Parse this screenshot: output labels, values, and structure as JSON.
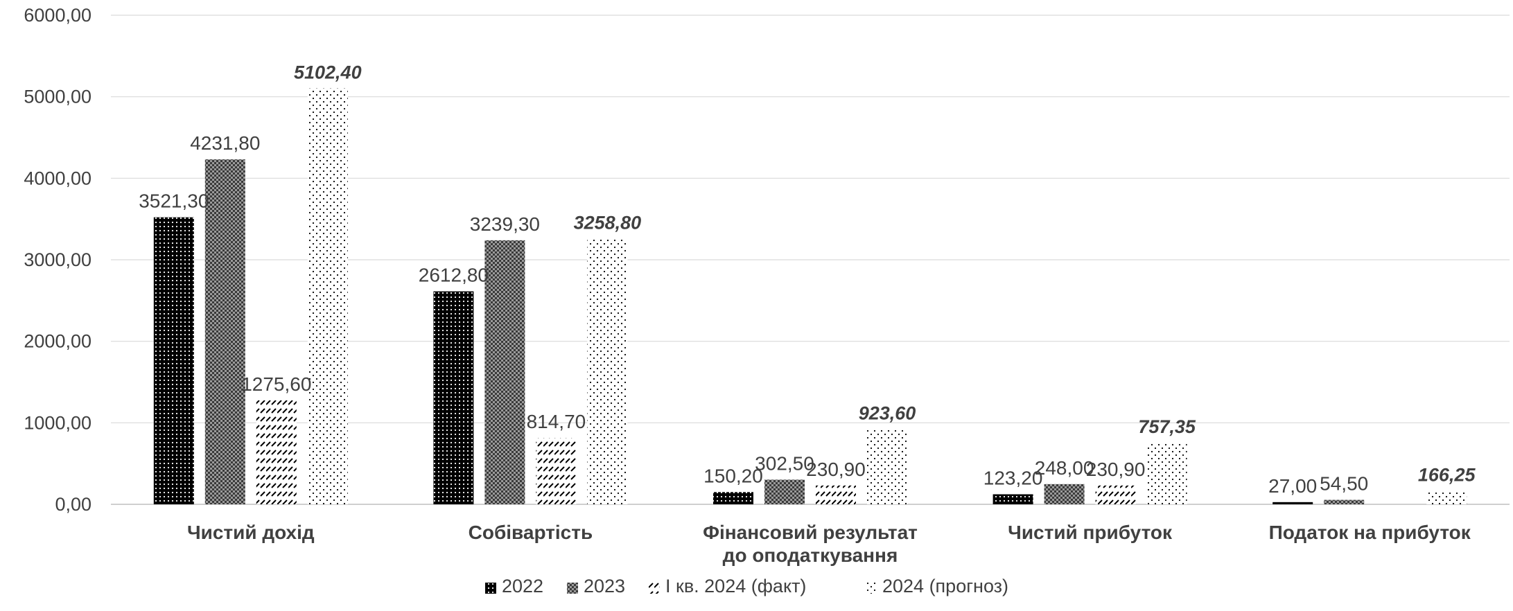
{
  "chart_data": {
    "type": "bar",
    "categories": [
      [
        "Чистий дохід"
      ],
      [
        "Собівартість"
      ],
      [
        "Фінансовий результат",
        "до оподаткування"
      ],
      [
        "Чистий прибуток"
      ],
      [
        "Податок на прибуток"
      ]
    ],
    "series": [
      {
        "name": "2022",
        "pattern": "solid-dots",
        "values": [
          3521.3,
          2612.8,
          150.2,
          123.2,
          27.0
        ],
        "labels": [
          "3521,30",
          "2612,80",
          "150,20",
          "123,20",
          "27,00"
        ]
      },
      {
        "name": "2023",
        "pattern": "checker",
        "values": [
          4231.8,
          3239.3,
          302.5,
          248.0,
          54.5
        ],
        "labels": [
          "4231,80",
          "3239,30",
          "302,50",
          "248,00",
          "54,50"
        ]
      },
      {
        "name": "I кв. 2024 (факт)",
        "pattern": "diagonal-dashes",
        "values": [
          1275.6,
          814.7,
          230.9,
          230.9,
          0
        ],
        "labels": [
          "1275,60",
          "814,70",
          "230,90",
          "230,90",
          ""
        ]
      },
      {
        "name": "2024 (прогноз)",
        "pattern": "sparse-dots",
        "values": [
          5102.4,
          3258.8,
          923.6,
          757.35,
          166.25
        ],
        "labels": [
          "5102,40",
          "3258,80",
          "923,60",
          "757,35",
          "166,25"
        ],
        "label_style": "bold-italic"
      }
    ],
    "y_ticks": [
      "0,00",
      "1000,00",
      "2000,00",
      "3000,00",
      "4000,00",
      "5000,00",
      "6000,00"
    ],
    "ylim": [
      0,
      6000
    ],
    "grid": true,
    "legend_position": "bottom"
  }
}
